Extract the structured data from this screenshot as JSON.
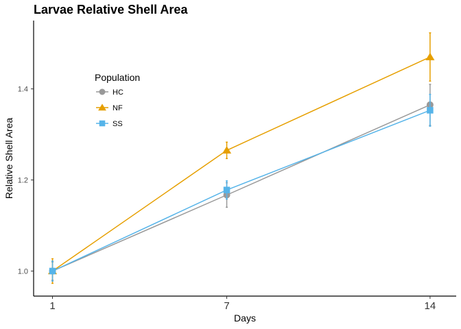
{
  "chart_data": {
    "type": "line",
    "title": "Larvae Relative Shell Area",
    "xlabel": "Days",
    "ylabel": "Relative Shell Area",
    "x": [
      1,
      7,
      14
    ],
    "x_tick_labels": [
      "1",
      "7",
      "14"
    ],
    "xlim": [
      0.35,
      14.9
    ],
    "ylim": [
      0.945,
      1.55
    ],
    "y_ticks": [
      1.0,
      1.2,
      1.4
    ],
    "y_tick_labels": [
      "1.0",
      "1.2",
      "1.4"
    ],
    "grid": false,
    "legend": {
      "title": "Population",
      "position": "top-left"
    },
    "series": [
      {
        "name": "HC",
        "color": "#999999",
        "marker": "circle",
        "values": [
          1.0,
          1.167,
          1.365
        ],
        "error": [
          0.02,
          0.027,
          0.045
        ]
      },
      {
        "name": "NF",
        "color": "#E69F00",
        "marker": "triangle",
        "values": [
          1.0,
          1.265,
          1.47
        ],
        "error": [
          0.027,
          0.018,
          0.053
        ]
      },
      {
        "name": "SS",
        "color": "#56B4E9",
        "marker": "square",
        "values": [
          1.0,
          1.178,
          1.353
        ],
        "error": [
          0.022,
          0.02,
          0.035
        ]
      }
    ]
  }
}
